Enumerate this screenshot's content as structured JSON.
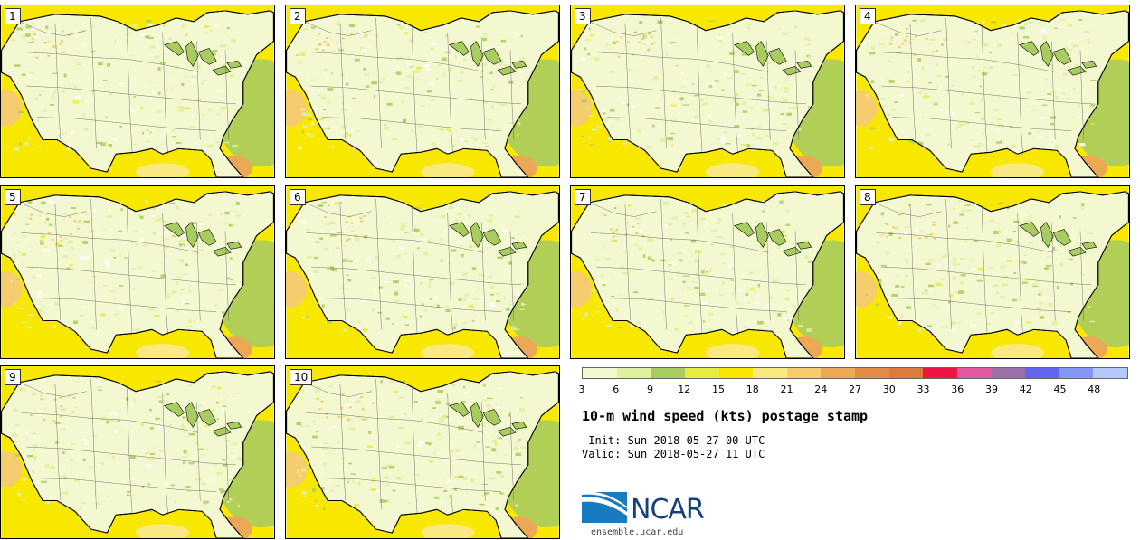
{
  "title": "10-m wind speed (kts) postage stamp",
  "init": " Init: Sun 2018-05-27 00 UTC",
  "valid": "Valid: Sun 2018-05-27 11 UTC",
  "website": "ensemble.ucar.edu",
  "logo_text": "NCAR",
  "panels": [
    "1",
    "2",
    "3",
    "4",
    "5",
    "6",
    "7",
    "8",
    "9",
    "10"
  ],
  "colorbar": {
    "colors": [
      "#f4f8d0",
      "#dff0a0",
      "#a8cc60",
      "#e4ee40",
      "#f8e800",
      "#fae880",
      "#f5cc6e",
      "#eba855",
      "#e38c45",
      "#dd7a3e",
      "#ee1444",
      "#e458a0",
      "#9a70a8",
      "#6464f0",
      "#8696f6",
      "#b4c8fa"
    ],
    "ticks": [
      "3",
      "6",
      "9",
      "12",
      "15",
      "18",
      "21",
      "24",
      "27",
      "30",
      "33",
      "36",
      "39",
      "42",
      "45",
      "48"
    ]
  }
}
